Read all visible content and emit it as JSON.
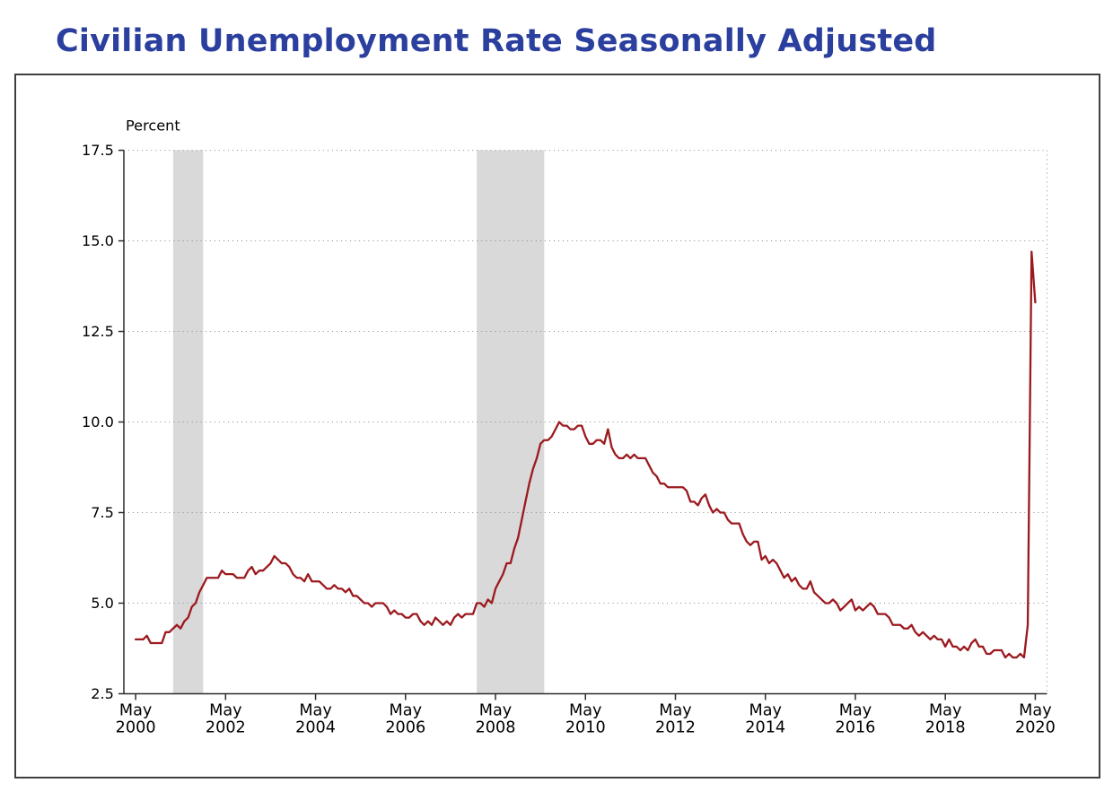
{
  "page": {
    "title": "Civilian Unemployment Rate Seasonally Adjusted"
  },
  "chart_data": {
    "type": "line",
    "title": "Civilian Unemployment Rate Seasonally Adjusted",
    "xlabel": "",
    "ylabel": "Percent",
    "ylim": [
      2.5,
      17.5
    ],
    "y_ticks": [
      "2.5",
      "5.0",
      "7.5",
      "10.0",
      "12.5",
      "15.0",
      "17.5"
    ],
    "x_start": "May 2000",
    "x_end": "May 2020",
    "frequency": "monthly",
    "grid": "dotted-horizontal",
    "legend": "none",
    "x_ticks": [
      {
        "top": "May",
        "bottom": "2000"
      },
      {
        "top": "May",
        "bottom": "2002"
      },
      {
        "top": "May",
        "bottom": "2004"
      },
      {
        "top": "May",
        "bottom": "2006"
      },
      {
        "top": "May",
        "bottom": "2008"
      },
      {
        "top": "May",
        "bottom": "2010"
      },
      {
        "top": "May",
        "bottom": "2012"
      },
      {
        "top": "May",
        "bottom": "2014"
      },
      {
        "top": "May",
        "bottom": "2016"
      },
      {
        "top": "May",
        "bottom": "2018"
      },
      {
        "top": "May",
        "bottom": "2020"
      }
    ],
    "x_tick_indices": [
      0,
      24,
      48,
      72,
      96,
      120,
      144,
      168,
      192,
      216,
      240
    ],
    "series": [
      {
        "name": "Civilian unemployment rate, seasonally adjusted",
        "values": [
          4.0,
          4.0,
          4.0,
          4.1,
          3.9,
          3.9,
          3.9,
          3.9,
          4.2,
          4.2,
          4.3,
          4.4,
          4.3,
          4.5,
          4.6,
          4.9,
          5.0,
          5.3,
          5.5,
          5.7,
          5.7,
          5.7,
          5.7,
          5.9,
          5.8,
          5.8,
          5.8,
          5.7,
          5.7,
          5.7,
          5.9,
          6.0,
          5.8,
          5.9,
          5.9,
          6.0,
          6.1,
          6.3,
          6.2,
          6.1,
          6.1,
          6.0,
          5.8,
          5.7,
          5.7,
          5.6,
          5.8,
          5.6,
          5.6,
          5.6,
          5.5,
          5.4,
          5.4,
          5.5,
          5.4,
          5.4,
          5.3,
          5.4,
          5.2,
          5.2,
          5.1,
          5.0,
          5.0,
          4.9,
          5.0,
          5.0,
          5.0,
          4.9,
          4.7,
          4.8,
          4.7,
          4.7,
          4.6,
          4.6,
          4.7,
          4.7,
          4.5,
          4.4,
          4.5,
          4.4,
          4.6,
          4.5,
          4.4,
          4.5,
          4.4,
          4.6,
          4.7,
          4.6,
          4.7,
          4.7,
          4.7,
          5.0,
          5.0,
          4.9,
          5.1,
          5.0,
          5.4,
          5.6,
          5.8,
          6.1,
          6.1,
          6.5,
          6.8,
          7.3,
          7.8,
          8.3,
          8.7,
          9.0,
          9.4,
          9.5,
          9.5,
          9.6,
          9.8,
          10.0,
          9.9,
          9.9,
          9.8,
          9.8,
          9.9,
          9.9,
          9.6,
          9.4,
          9.4,
          9.5,
          9.5,
          9.4,
          9.8,
          9.3,
          9.1,
          9.0,
          9.0,
          9.1,
          9.0,
          9.1,
          9.0,
          9.0,
          9.0,
          8.8,
          8.6,
          8.5,
          8.3,
          8.3,
          8.2,
          8.2,
          8.2,
          8.2,
          8.2,
          8.1,
          7.8,
          7.8,
          7.7,
          7.9,
          8.0,
          7.7,
          7.5,
          7.6,
          7.5,
          7.5,
          7.3,
          7.2,
          7.2,
          7.2,
          6.9,
          6.7,
          6.6,
          6.7,
          6.7,
          6.2,
          6.3,
          6.1,
          6.2,
          6.1,
          5.9,
          5.7,
          5.8,
          5.6,
          5.7,
          5.5,
          5.4,
          5.4,
          5.6,
          5.3,
          5.2,
          5.1,
          5.0,
          5.0,
          5.1,
          5.0,
          4.8,
          4.9,
          5.0,
          5.1,
          4.8,
          4.9,
          4.8,
          4.9,
          5.0,
          4.9,
          4.7,
          4.7,
          4.7,
          4.6,
          4.4,
          4.4,
          4.4,
          4.3,
          4.3,
          4.4,
          4.2,
          4.1,
          4.2,
          4.1,
          4.0,
          4.1,
          4.0,
          4.0,
          3.8,
          4.0,
          3.8,
          3.8,
          3.7,
          3.8,
          3.7,
          3.9,
          4.0,
          3.8,
          3.8,
          3.6,
          3.6,
          3.7,
          3.7,
          3.7,
          3.5,
          3.6,
          3.5,
          3.5,
          3.6,
          3.5,
          4.4,
          14.7,
          13.3
        ]
      }
    ],
    "shaded_regions": [
      {
        "name": "recession-2001",
        "from": "Mar 2001",
        "to": "Nov 2001",
        "from_index": 10,
        "to_index": 18
      },
      {
        "name": "recession-2008",
        "from": "Dec 2007",
        "to": "Jun 2009",
        "from_index": 91,
        "to_index": 109
      }
    ],
    "colors": {
      "line": "#9c1a1f",
      "band": "#d9d9d9",
      "title": "#2b3f9e",
      "grid": "#8a8a8a",
      "axis": "#2b2b2b",
      "tick_text": "#000000"
    }
  }
}
